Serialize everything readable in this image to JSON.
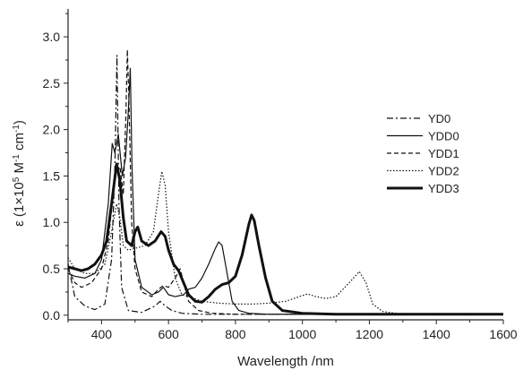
{
  "chart_data": {
    "type": "line",
    "xlabel": "Wavelength /nm",
    "ylabel": {
      "base": "ε (1×10",
      "exp1": "5",
      "mid": " M",
      "exp2": "-1",
      "mid2": " cm",
      "exp3": "-1",
      "end": ")"
    },
    "xlim": [
      300,
      1600
    ],
    "ylim": [
      -0.05,
      3.3
    ],
    "x_ticks": [
      400,
      600,
      800,
      1000,
      1200,
      1400,
      1600
    ],
    "y_ticks": [
      0.0,
      0.5,
      1.0,
      1.5,
      2.0,
      2.5,
      3.0
    ],
    "x_tick_labels": [
      "400",
      "600",
      "800",
      "1000",
      "1200",
      "1400",
      "1600"
    ],
    "y_tick_labels": [
      "0.0",
      "0.5",
      "1.0",
      "1.5",
      "2.0",
      "2.5",
      "3.0"
    ],
    "grid": false,
    "legend_position": "right",
    "series": [
      {
        "name": "YD0",
        "style": "dashdot",
        "points": [
          [
            300,
            0.55
          ],
          [
            320,
            0.2
          ],
          [
            350,
            0.1
          ],
          [
            380,
            0.06
          ],
          [
            410,
            0.12
          ],
          [
            430,
            0.6
          ],
          [
            440,
            1.6
          ],
          [
            446,
            2.8
          ],
          [
            452,
            1.2
          ],
          [
            460,
            0.3
          ],
          [
            480,
            0.05
          ],
          [
            520,
            0.03
          ],
          [
            560,
            0.1
          ],
          [
            575,
            0.15
          ],
          [
            590,
            0.1
          ],
          [
            610,
            0.05
          ],
          [
            640,
            0.02
          ],
          [
            700,
            0.01
          ],
          [
            800,
            0.01
          ],
          [
            1000,
            0.01
          ],
          [
            1600,
            0.01
          ]
        ]
      },
      {
        "name": "YDD0",
        "style": "solid",
        "points": [
          [
            300,
            0.45
          ],
          [
            320,
            0.42
          ],
          [
            350,
            0.4
          ],
          [
            380,
            0.45
          ],
          [
            400,
            0.6
          ],
          [
            420,
            1.2
          ],
          [
            432,
            1.85
          ],
          [
            440,
            1.75
          ],
          [
            450,
            1.95
          ],
          [
            462,
            1.5
          ],
          [
            472,
            1.7
          ],
          [
            480,
            2.2
          ],
          [
            486,
            2.66
          ],
          [
            491,
            1.6
          ],
          [
            500,
            0.6
          ],
          [
            520,
            0.3
          ],
          [
            550,
            0.22
          ],
          [
            570,
            0.25
          ],
          [
            585,
            0.3
          ],
          [
            600,
            0.22
          ],
          [
            620,
            0.2
          ],
          [
            645,
            0.22
          ],
          [
            660,
            0.28
          ],
          [
            680,
            0.3
          ],
          [
            700,
            0.4
          ],
          [
            720,
            0.55
          ],
          [
            740,
            0.72
          ],
          [
            750,
            0.79
          ],
          [
            760,
            0.75
          ],
          [
            775,
            0.45
          ],
          [
            790,
            0.15
          ],
          [
            810,
            0.05
          ],
          [
            840,
            0.02
          ],
          [
            900,
            0.01
          ],
          [
            1000,
            0.01
          ],
          [
            1600,
            0.01
          ]
        ]
      },
      {
        "name": "YDD1",
        "style": "dashed",
        "points": [
          [
            300,
            0.5
          ],
          [
            320,
            0.35
          ],
          [
            340,
            0.3
          ],
          [
            370,
            0.35
          ],
          [
            400,
            0.5
          ],
          [
            420,
            0.8
          ],
          [
            440,
            1.5
          ],
          [
            455,
            1.6
          ],
          [
            465,
            1.3
          ],
          [
            473,
            2.2
          ],
          [
            477,
            2.86
          ],
          [
            482,
            2.3
          ],
          [
            490,
            1.0
          ],
          [
            500,
            0.5
          ],
          [
            520,
            0.25
          ],
          [
            550,
            0.2
          ],
          [
            570,
            0.28
          ],
          [
            585,
            0.32
          ],
          [
            600,
            0.3
          ],
          [
            620,
            0.4
          ],
          [
            635,
            0.5
          ],
          [
            645,
            0.35
          ],
          [
            660,
            0.15
          ],
          [
            690,
            0.05
          ],
          [
            730,
            0.02
          ],
          [
            800,
            0.01
          ],
          [
            1000,
            0.01
          ],
          [
            1600,
            0.01
          ]
        ]
      },
      {
        "name": "YDD2",
        "style": "dotted",
        "points": [
          [
            300,
            0.62
          ],
          [
            320,
            0.5
          ],
          [
            350,
            0.45
          ],
          [
            380,
            0.45
          ],
          [
            410,
            0.55
          ],
          [
            430,
            0.9
          ],
          [
            445,
            1.2
          ],
          [
            455,
            1.05
          ],
          [
            465,
            0.75
          ],
          [
            480,
            0.7
          ],
          [
            500,
            0.72
          ],
          [
            530,
            0.75
          ],
          [
            555,
            0.9
          ],
          [
            570,
            1.3
          ],
          [
            580,
            1.55
          ],
          [
            590,
            1.4
          ],
          [
            600,
            0.9
          ],
          [
            620,
            0.4
          ],
          [
            640,
            0.22
          ],
          [
            660,
            0.2
          ],
          [
            700,
            0.15
          ],
          [
            750,
            0.13
          ],
          [
            800,
            0.12
          ],
          [
            850,
            0.12
          ],
          [
            900,
            0.13
          ],
          [
            950,
            0.15
          ],
          [
            990,
            0.2
          ],
          [
            1015,
            0.23
          ],
          [
            1040,
            0.2
          ],
          [
            1070,
            0.18
          ],
          [
            1100,
            0.2
          ],
          [
            1140,
            0.35
          ],
          [
            1170,
            0.47
          ],
          [
            1190,
            0.35
          ],
          [
            1210,
            0.12
          ],
          [
            1240,
            0.04
          ],
          [
            1300,
            0.01
          ],
          [
            1600,
            0.01
          ]
        ]
      },
      {
        "name": "YDD3",
        "style": "bold",
        "points": [
          [
            300,
            0.52
          ],
          [
            320,
            0.5
          ],
          [
            340,
            0.48
          ],
          [
            360,
            0.5
          ],
          [
            380,
            0.55
          ],
          [
            400,
            0.65
          ],
          [
            415,
            0.8
          ],
          [
            430,
            1.2
          ],
          [
            445,
            1.63
          ],
          [
            455,
            1.45
          ],
          [
            465,
            1.05
          ],
          [
            475,
            0.8
          ],
          [
            490,
            0.75
          ],
          [
            500,
            0.9
          ],
          [
            508,
            0.95
          ],
          [
            520,
            0.8
          ],
          [
            540,
            0.75
          ],
          [
            560,
            0.8
          ],
          [
            578,
            0.9
          ],
          [
            590,
            0.85
          ],
          [
            600,
            0.7
          ],
          [
            615,
            0.55
          ],
          [
            630,
            0.48
          ],
          [
            645,
            0.35
          ],
          [
            660,
            0.22
          ],
          [
            680,
            0.15
          ],
          [
            700,
            0.14
          ],
          [
            720,
            0.2
          ],
          [
            740,
            0.28
          ],
          [
            760,
            0.33
          ],
          [
            780,
            0.35
          ],
          [
            800,
            0.42
          ],
          [
            820,
            0.65
          ],
          [
            840,
            0.98
          ],
          [
            848,
            1.08
          ],
          [
            856,
            1.02
          ],
          [
            870,
            0.75
          ],
          [
            890,
            0.4
          ],
          [
            910,
            0.15
          ],
          [
            940,
            0.05
          ],
          [
            1000,
            0.02
          ],
          [
            1100,
            0.01
          ],
          [
            1600,
            0.01
          ]
        ]
      }
    ]
  }
}
